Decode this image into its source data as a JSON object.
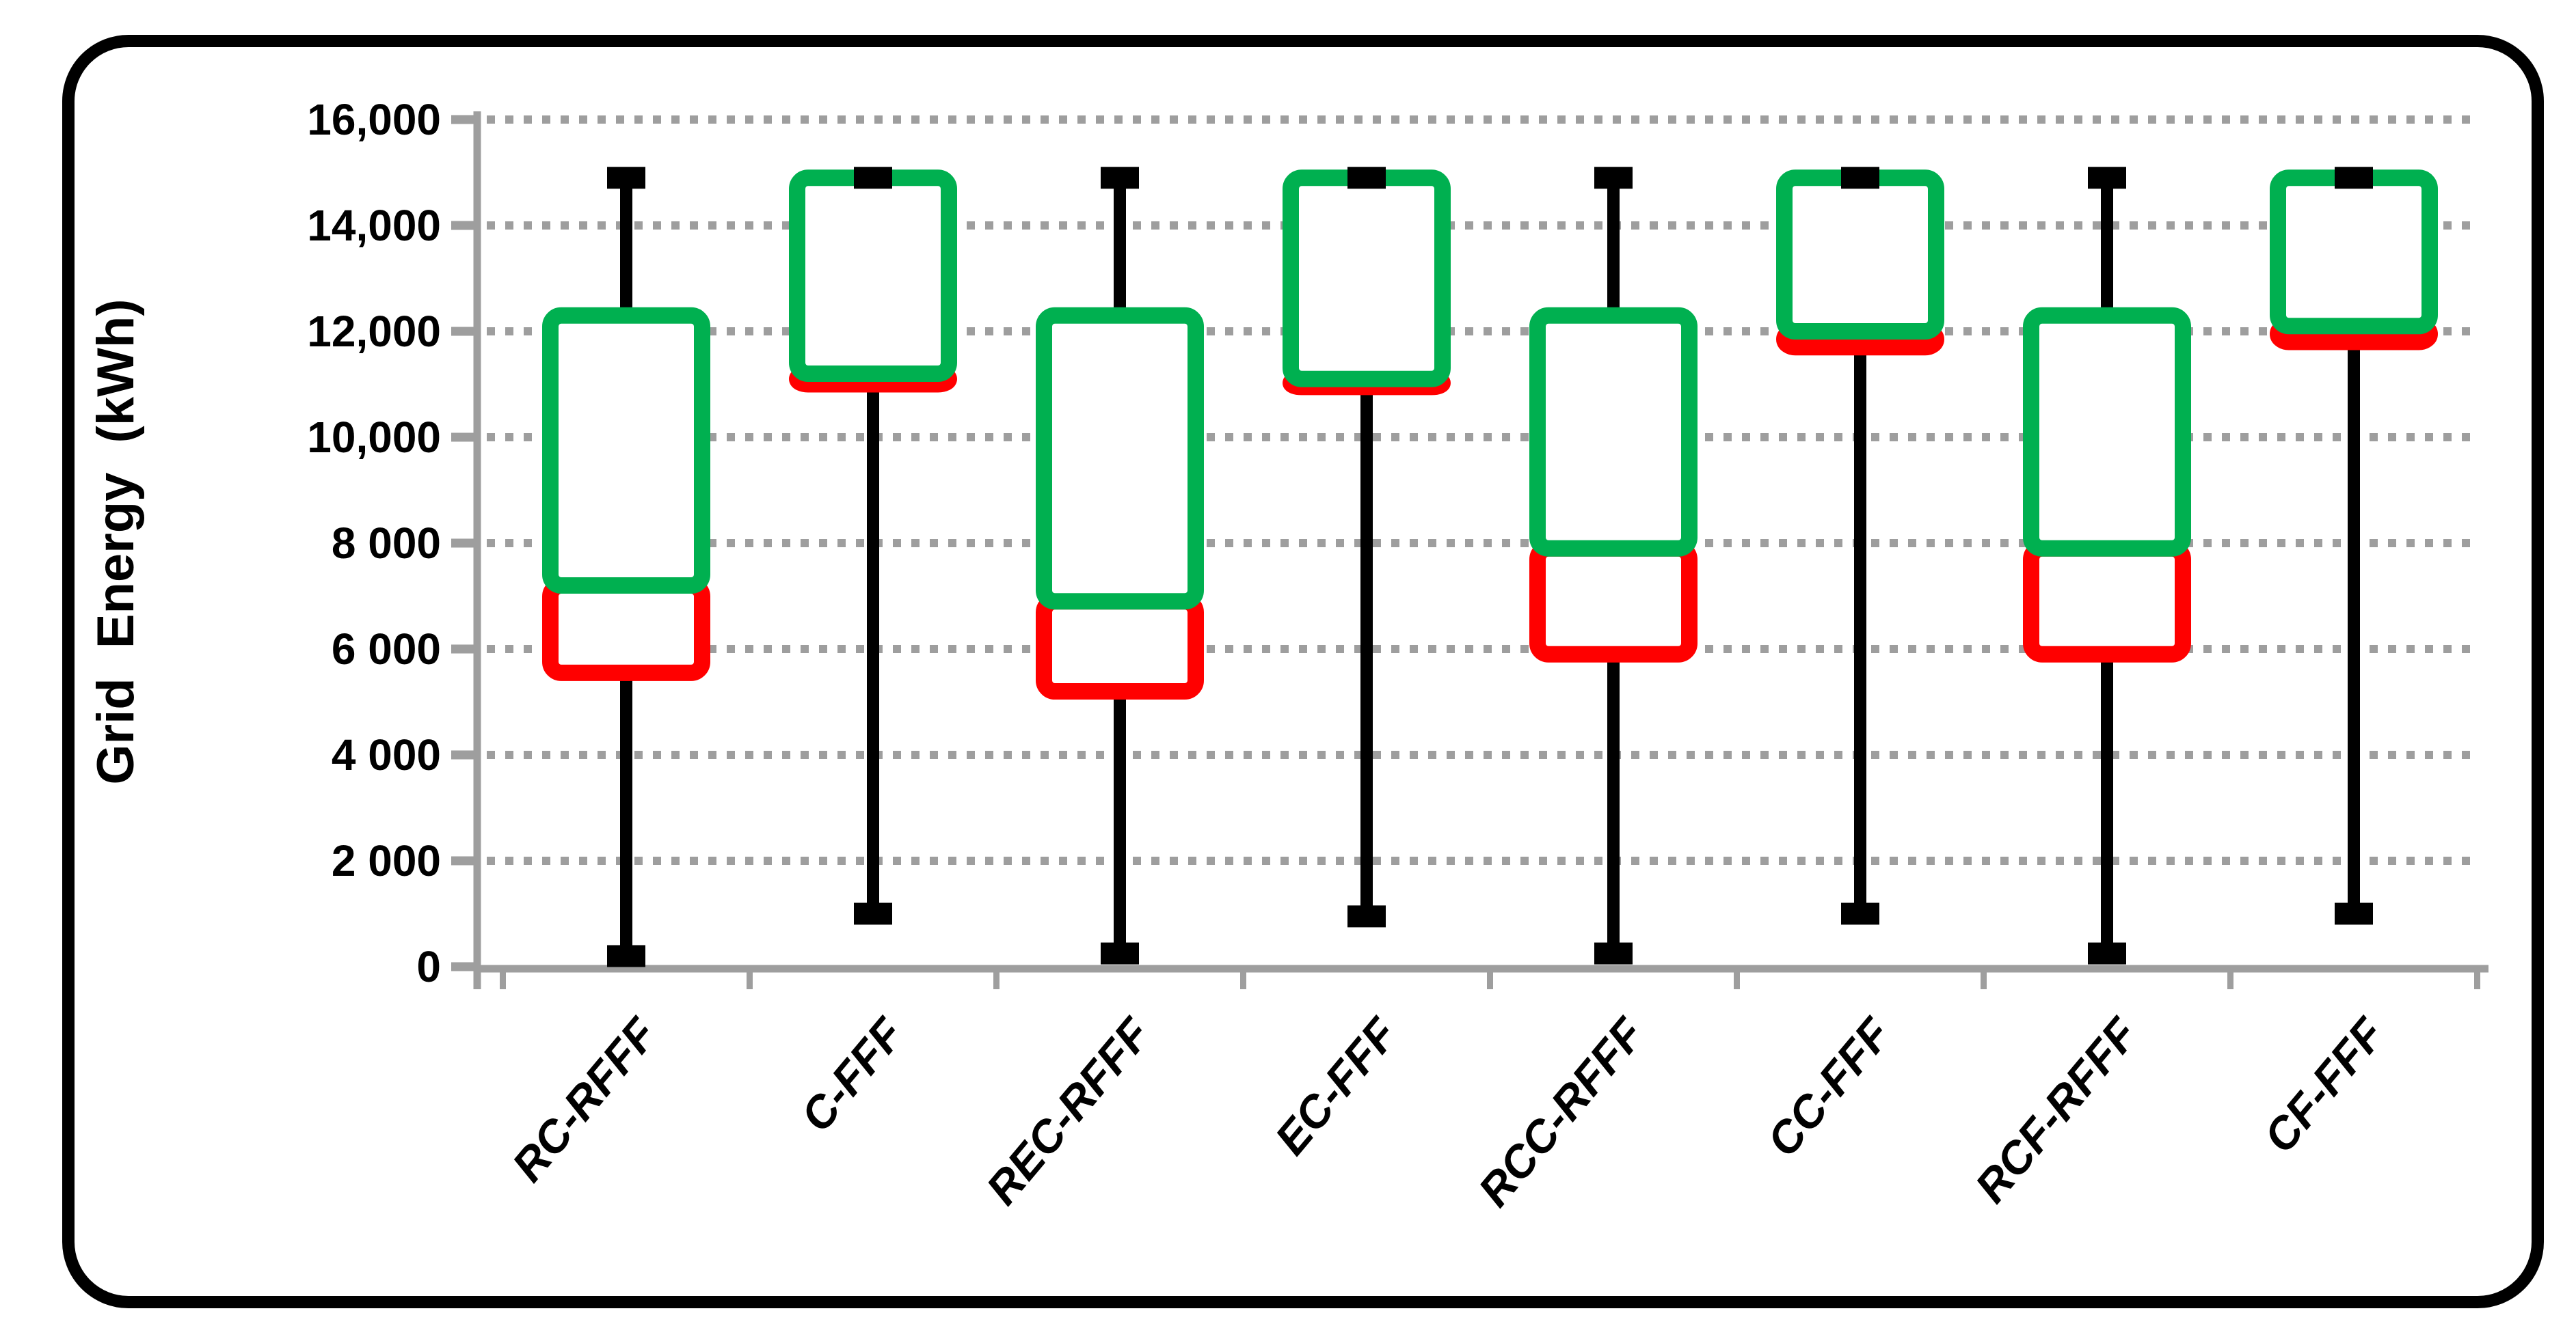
{
  "figure": {
    "background": "#FFFFFF",
    "frame_color": "#000000"
  },
  "chart_data": {
    "type": "box",
    "title": "",
    "xlabel": "",
    "ylabel": "Grid Energy (kWh)",
    "ylim": [
      0,
      16000
    ],
    "grid": "horizontal dotted, every 2000",
    "legend": "none",
    "y_ticks": [
      {
        "value": 0,
        "label": "0"
      },
      {
        "value": 2000,
        "label": "2 000"
      },
      {
        "value": 4000,
        "label": "4 000"
      },
      {
        "value": 6000,
        "label": "6 000"
      },
      {
        "value": 8000,
        "label": "8 000"
      },
      {
        "value": 10000,
        "label": "10,000"
      },
      {
        "value": 12000,
        "label": "12,000"
      },
      {
        "value": 14000,
        "label": "14,000"
      },
      {
        "value": 16000,
        "label": "16,000"
      }
    ],
    "categories": [
      "RC-RFFF",
      "C-FFF",
      "REC-RFFF",
      "EC-FFF",
      "RCC-RFFF",
      "CC-FFF",
      "RCF-RFFF",
      "CF-FFF"
    ],
    "series": [
      {
        "name": "RC-RFFF",
        "min": 200,
        "q1": 5550,
        "median": 7200,
        "q3": 12300,
        "max": 14900
      },
      {
        "name": "C-FFF",
        "min": 1000,
        "q1": 11000,
        "median": 11200,
        "q3": 14900,
        "max": 14900
      },
      {
        "name": "REC-RFFF",
        "min": 250,
        "q1": 5200,
        "median": 6900,
        "q3": 12300,
        "max": 14900
      },
      {
        "name": "EC-FFF",
        "min": 950,
        "q1": 10950,
        "median": 11100,
        "q3": 14900,
        "max": 14900
      },
      {
        "name": "RCC-RFFF",
        "min": 250,
        "q1": 5900,
        "median": 7900,
        "q3": 12300,
        "max": 14900
      },
      {
        "name": "CC-FFF",
        "min": 1000,
        "q1": 11700,
        "median": 12000,
        "q3": 14900,
        "max": 14900
      },
      {
        "name": "RCF-RFFF",
        "min": 250,
        "q1": 5900,
        "median": 7900,
        "q3": 12300,
        "max": 14900
      },
      {
        "name": "CF-FFF",
        "min": 1000,
        "q1": 11800,
        "median": 12100,
        "q3": 14900,
        "max": 14900
      }
    ],
    "colors": {
      "upper_box_border": "#00B050",
      "lower_box_border": "#FF0000",
      "box_fill": "#FFFFFF",
      "whisker": "#000000",
      "axis": "#9E9E9E",
      "gridline": "#9E9E9E",
      "text": "#000000"
    }
  }
}
